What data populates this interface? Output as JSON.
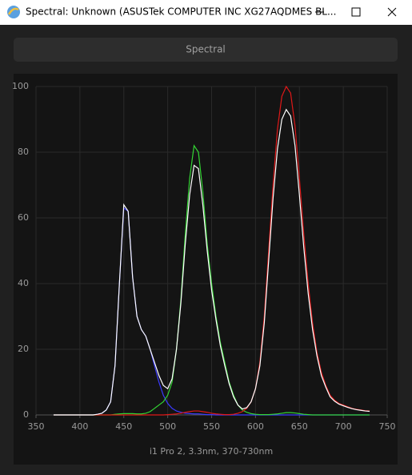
{
  "window": {
    "title": "Spectral: Unknown (ASUSTek COMPUTER INC XG27AQDMES BL..."
  },
  "button": {
    "label": "Spectral"
  },
  "chart_data": {
    "type": "line",
    "xlabel": "i1 Pro 2, 3.3nm, 370-730nm",
    "x": [
      370,
      375,
      380,
      385,
      390,
      395,
      400,
      405,
      410,
      415,
      420,
      425,
      430,
      435,
      440,
      445,
      450,
      455,
      460,
      465,
      470,
      475,
      480,
      485,
      490,
      495,
      500,
      505,
      510,
      515,
      520,
      525,
      530,
      535,
      540,
      545,
      550,
      555,
      560,
      565,
      570,
      575,
      580,
      585,
      590,
      595,
      600,
      605,
      610,
      615,
      620,
      625,
      630,
      635,
      640,
      645,
      650,
      655,
      660,
      665,
      670,
      675,
      680,
      685,
      690,
      695,
      700,
      705,
      710,
      715,
      720,
      725,
      730
    ],
    "series": [
      {
        "color": "#3a3aff",
        "values": [
          0,
          0,
          0,
          0,
          0,
          0,
          0,
          0,
          0,
          0,
          0.2,
          0.5,
          1.5,
          4,
          15,
          40,
          63,
          62,
          42,
          30,
          26,
          24,
          20,
          15,
          10,
          6,
          3.5,
          2,
          1.2,
          0.8,
          0.5,
          0.4,
          0.3,
          0.3,
          0.2,
          0.1,
          0.1,
          0,
          0,
          0,
          0,
          0,
          0,
          0,
          0,
          0,
          0,
          0,
          0,
          0,
          0,
          0,
          0,
          0,
          0,
          0,
          0,
          0,
          0,
          0,
          0,
          0,
          0,
          0,
          0,
          0,
          0,
          0,
          0,
          0,
          0,
          0,
          0
        ]
      },
      {
        "color": "#33d433",
        "values": [
          0,
          0,
          0,
          0,
          0,
          0,
          0,
          0,
          0,
          0,
          0,
          0,
          0,
          0,
          0.2,
          0.3,
          0.4,
          0.4,
          0.4,
          0.3,
          0.3,
          0.5,
          1,
          2,
          3,
          4,
          6,
          10,
          20,
          35,
          55,
          72,
          82,
          80,
          68,
          52,
          40,
          30,
          22,
          16,
          10,
          6,
          3,
          1.5,
          0.8,
          0.4,
          0.2,
          0.1,
          0.1,
          0.1,
          0.2,
          0.3,
          0.5,
          0.7,
          0.7,
          0.6,
          0.4,
          0.2,
          0.1,
          0,
          0,
          0,
          0,
          0,
          0,
          0,
          0,
          0,
          0,
          0,
          0,
          0,
          0
        ]
      },
      {
        "color": "#e01818",
        "values": [
          0,
          0,
          0,
          0,
          0,
          0,
          0,
          0,
          0,
          0,
          0,
          0,
          0,
          0,
          0,
          0,
          0,
          0,
          0,
          0,
          0,
          0,
          0,
          0,
          0,
          0,
          0.1,
          0.2,
          0.3,
          0.5,
          0.8,
          1,
          1.2,
          1.2,
          1,
          0.8,
          0.5,
          0.3,
          0.2,
          0.1,
          0.1,
          0.2,
          0.5,
          1,
          2,
          4,
          8,
          16,
          30,
          50,
          70,
          87,
          97,
          100,
          98,
          88,
          72,
          55,
          40,
          28,
          19,
          13,
          9,
          6,
          4.5,
          3.5,
          3,
          2.5,
          2,
          1.7,
          1.5,
          1.3,
          1.2
        ]
      },
      {
        "color": "#ffffff",
        "values": [
          0,
          0,
          0,
          0,
          0,
          0,
          0,
          0,
          0,
          0,
          0.2,
          0.5,
          1.5,
          4,
          15,
          40,
          64,
          62,
          42,
          30,
          26,
          24,
          20,
          16,
          12,
          9,
          8,
          11,
          20,
          34,
          52,
          67,
          76,
          75,
          64,
          50,
          38,
          29,
          21,
          15,
          9.5,
          5.5,
          3,
          1.8,
          2.2,
          4,
          8,
          15,
          28,
          47,
          66,
          81,
          90,
          93,
          91,
          82,
          67,
          51,
          37,
          26,
          18,
          12,
          8.5,
          5.5,
          4.2,
          3.3,
          2.8,
          2.3,
          1.9,
          1.6,
          1.4,
          1.2,
          1.1
        ]
      }
    ],
    "xlim": [
      350,
      750
    ],
    "ylim": [
      0,
      100
    ],
    "xticks": [
      350,
      400,
      450,
      500,
      550,
      600,
      650,
      700,
      750
    ],
    "yticks": [
      0,
      20,
      40,
      60,
      80,
      100
    ],
    "grid": true
  }
}
